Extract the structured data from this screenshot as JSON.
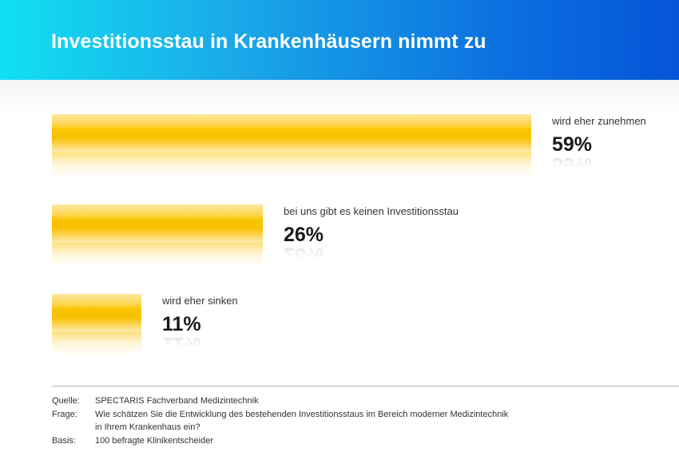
{
  "title": "Investitionsstau in Krankenhäusern nimmt zu",
  "colors": {
    "bar": "#f8c000",
    "header_start": "#12e0f2",
    "header_end": "#0555d8"
  },
  "chart_data": {
    "type": "bar",
    "orientation": "horizontal",
    "title": "Investitionsstau in Krankenhäusern nimmt zu",
    "categories": [
      "wird eher zunehmen",
      "bei uns gibt es keinen Investitionsstau",
      "wird eher sinken"
    ],
    "values": [
      59,
      26,
      11
    ],
    "value_labels": [
      "59%",
      "26%",
      "11%"
    ],
    "unit": "%",
    "xlim": [
      0,
      100
    ],
    "grid": false,
    "legend": false
  },
  "footer": {
    "source_label": "Quelle:",
    "source": "SPECTARIS Fachverband Medizintechnik",
    "question_label": "Frage:",
    "question_line1": "Wie schätzen Sie die Entwicklung des bestehenden Investitionsstaus im Bereich moderner Medizintechnik",
    "question_line2": "in Ihrem Krankenhaus ein?",
    "basis_label": "Basis:",
    "basis": "100 befragte Klinikentscheider"
  }
}
